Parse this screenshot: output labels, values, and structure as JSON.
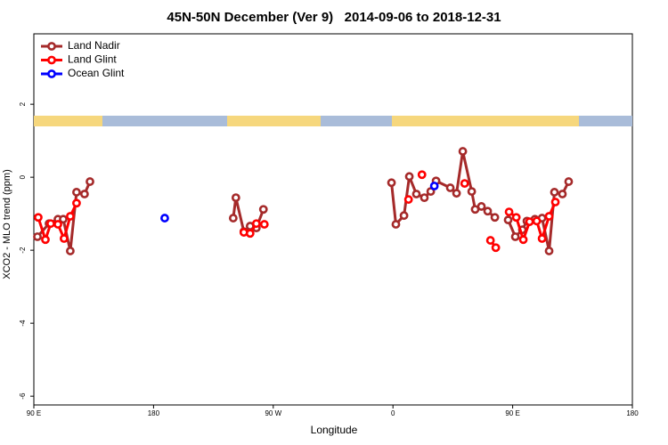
{
  "chart_data": {
    "type": "line",
    "title": "45N-50N December (Ver 9)   2014-09-06 to 2018-12-31",
    "x_label": "Longitude",
    "y_label": "XCO2 - MLO trend (ppm)",
    "xlim": [
      90,
      540
    ],
    "ylim": [
      -6.24,
      3.93
    ],
    "xticks": [
      {
        "value": 90,
        "label": "90 E"
      },
      180,
      {
        "value": 270,
        "label": "90 W"
      },
      {
        "value": 360,
        "label": "0"
      },
      {
        "value": 450,
        "label": "90 E"
      },
      {
        "value": 540,
        "label": "180"
      }
    ],
    "yticks": [
      2,
      0,
      -2,
      -4,
      -6
    ],
    "legend": "top-left",
    "series": [
      {
        "name": "Land Nadir",
        "color": "#a52a2a",
        "x": [
          92.7,
          101.4,
          108.1,
          112.1,
          117.4,
          122.1,
          128.1,
          132.2,
          null,
          239.9,
          241.9,
          247.9,
          252.6,
          257.3,
          262.6,
          null,
          358.9,
          362.2,
          368.3,
          372.3,
          377.6,
          383.6,
          388.4,
          392.4,
          403.1,
          407.8,
          412.5,
          419.2,
          421.8,
          426.5,
          431.2,
          436.6,
          null,
          446.6,
          452.0,
          457.3,
          460.7,
          466.7,
          472.1,
          477.4,
          481.4,
          487.4,
          492.1
        ],
        "values": [
          -1.63,
          -1.27,
          -1.15,
          -1.15,
          -2.02,
          -0.41,
          -0.46,
          -0.12,
          null,
          -1.12,
          -0.56,
          -1.49,
          -1.34,
          -1.39,
          -0.88,
          null,
          -0.15,
          -1.29,
          -1.05,
          0.02,
          -0.46,
          -0.56,
          -0.39,
          -0.1,
          -0.29,
          -0.44,
          0.71,
          -0.39,
          -0.88,
          -0.8,
          -0.93,
          -1.1,
          null,
          -1.17,
          -1.63,
          -1.44,
          -1.2,
          -1.15,
          -1.12,
          -2.02,
          -0.41,
          -0.46,
          -0.12
        ]
      },
      {
        "name": "Land Glint",
        "color": "#ff0000",
        "x": [
          93.3,
          98.7,
          102.7,
          108.1,
          112.7,
          117.4,
          122.1,
          null,
          247.9,
          252.6,
          257.3,
          263.3,
          null,
          371.7,
          null,
          381.8,
          null,
          413.9,
          null,
          433.3,
          437.3,
          null,
          447.3,
          452.7,
          458.0,
          462.7,
          468.1,
          472.1,
          477.4,
          482.1
        ],
        "values": [
          -1.1,
          -1.71,
          -1.27,
          -1.29,
          -1.68,
          -1.07,
          -0.71,
          null,
          -1.51,
          -1.54,
          -1.27,
          -1.29,
          null,
          -0.61,
          null,
          0.07,
          null,
          -0.17,
          null,
          -1.73,
          -1.93,
          null,
          -0.95,
          -1.1,
          -1.71,
          -1.22,
          -1.2,
          -1.68,
          -1.07,
          -0.68
        ]
      },
      {
        "name": "Ocean Glint",
        "color": "#0000ff",
        "x": [
          188.4,
          null,
          391.1
        ],
        "values": [
          -1.12,
          null,
          -0.24
        ]
      }
    ]
  }
}
